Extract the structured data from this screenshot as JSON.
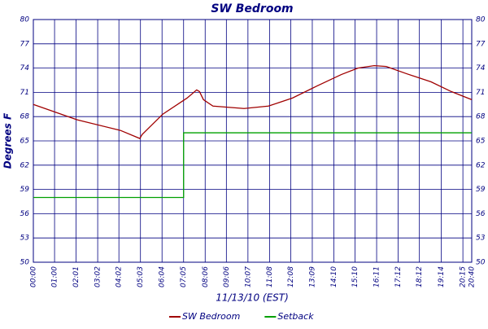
{
  "chart_data": {
    "type": "line",
    "title": "SW Bedroom",
    "ylabel": "Degrees F",
    "xlabel": "11/13/10 (EST)",
    "xlim": [
      0,
      1240
    ],
    "ylim": [
      50,
      80
    ],
    "yticks": [
      50,
      53,
      56,
      59,
      62,
      65,
      68,
      71,
      74,
      77,
      80
    ],
    "xticks": [
      {
        "value": 0,
        "label": "00:00"
      },
      {
        "value": 60,
        "label": "01:00"
      },
      {
        "value": 121,
        "label": "02:01"
      },
      {
        "value": 182,
        "label": "03:02"
      },
      {
        "value": 242,
        "label": "04:02"
      },
      {
        "value": 303,
        "label": "05:03"
      },
      {
        "value": 364,
        "label": "06:04"
      },
      {
        "value": 425,
        "label": "07:05"
      },
      {
        "value": 486,
        "label": "08:06"
      },
      {
        "value": 546,
        "label": "09:06"
      },
      {
        "value": 607,
        "label": "10:07"
      },
      {
        "value": 668,
        "label": "11:08"
      },
      {
        "value": 728,
        "label": "12:08"
      },
      {
        "value": 789,
        "label": "13:09"
      },
      {
        "value": 850,
        "label": "14:10"
      },
      {
        "value": 910,
        "label": "15:10"
      },
      {
        "value": 971,
        "label": "16:11"
      },
      {
        "value": 1032,
        "label": "17:12"
      },
      {
        "value": 1092,
        "label": "18:12"
      },
      {
        "value": 1154,
        "label": "19:14"
      },
      {
        "value": 1215,
        "label": "20:15"
      },
      {
        "value": 1240,
        "label": "20:40"
      }
    ],
    "grid": true,
    "legend": "bottom",
    "series": [
      {
        "name": "SW Bedroom",
        "color": "#a00000",
        "x": [
          0,
          124,
          246,
          301,
          308,
          366,
          435,
          462,
          470,
          481,
          508,
          596,
          665,
          733,
          803,
          871,
          918,
          964,
          998,
          1056,
          1125,
          1182,
          1240
        ],
        "values": [
          69.5,
          67.6,
          66.3,
          65.3,
          65.8,
          68.3,
          70.3,
          71.3,
          71.1,
          70.1,
          69.3,
          69.0,
          69.3,
          70.3,
          71.8,
          73.2,
          74.0,
          74.3,
          74.2,
          73.3,
          72.3,
          71.1,
          70.1
        ]
      },
      {
        "name": "Setback",
        "color": "#00a000",
        "x": [
          0,
          425,
          425,
          1240
        ],
        "values": [
          58,
          58,
          66,
          66
        ]
      }
    ]
  }
}
